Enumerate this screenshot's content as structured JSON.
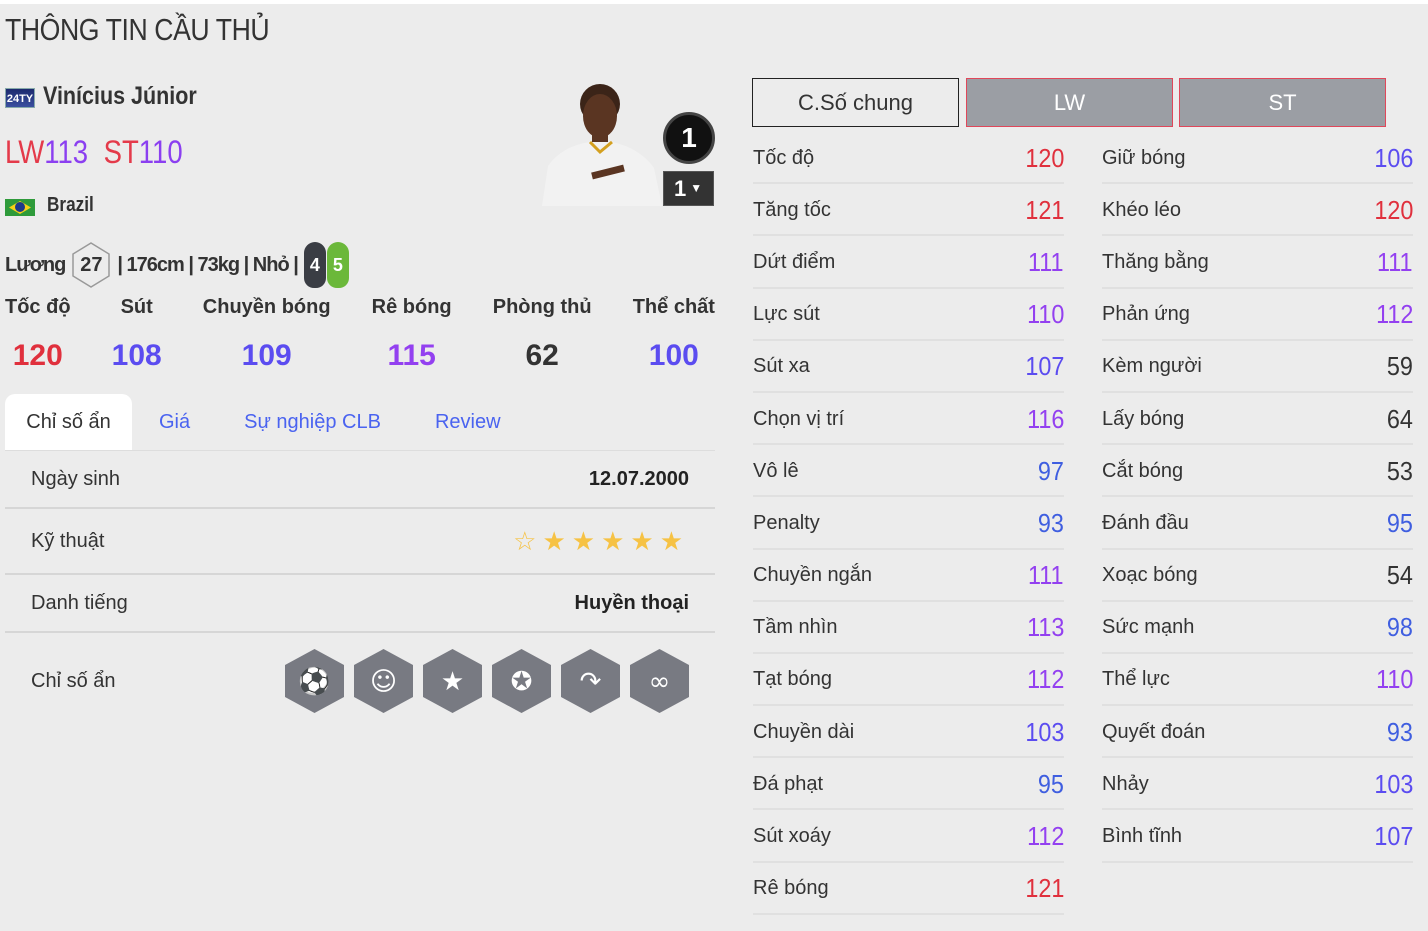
{
  "page_title": "THÔNG TIN CẦU THỦ",
  "player": {
    "season_logo": "24TY",
    "name": "Vinícius Júnior",
    "ratings": [
      {
        "pos": "LW",
        "ovr": "113"
      },
      {
        "pos": "ST",
        "ovr": "110"
      }
    ],
    "nation": "Brazil",
    "salary_label": "Lương",
    "salary": "27",
    "details": "| 176cm | 73kg | Nhỏ |",
    "left_foot": "4",
    "right_foot": "5",
    "upgrade_level": "1",
    "upgrade_select": "1"
  },
  "summary": [
    {
      "label": "Tốc độ",
      "value": 120
    },
    {
      "label": "Sút",
      "value": 108
    },
    {
      "label": "Chuyền bóng",
      "value": 109
    },
    {
      "label": "Rê bóng",
      "value": 115
    },
    {
      "label": "Phòng thủ",
      "value": 62
    },
    {
      "label": "Thể chất",
      "value": 100
    }
  ],
  "tabs": [
    {
      "label": "Chỉ số ẩn",
      "active": true
    },
    {
      "label": "Giá"
    },
    {
      "label": "Sự nghiệp CLB"
    },
    {
      "label": "Review"
    }
  ],
  "info": {
    "birth_label": "Ngày sinh",
    "birth": "12.07.2000",
    "skill_label": "Kỹ thuật",
    "skill_stars": 5,
    "skill_max": 6,
    "rep_label": "Danh tiếng",
    "rep": "Huyền thoại",
    "traits_label": "Chỉ số ẩn",
    "traits": [
      "finesse-shot-icon",
      "flair-icon",
      "speed-dribbler-icon",
      "outside-foot-curl-icon",
      "chip-shot-icon",
      "dribbling-path-icon"
    ]
  },
  "position_buttons": [
    "C.Số chung",
    "LW",
    "ST"
  ],
  "colors": {
    "red": "#e0303d",
    "purple": "#9340f0",
    "violet": "#5b4cf0",
    "blue": "#3f5ee0",
    "dark": "#333333"
  },
  "stats_left": [
    {
      "name": "Tốc độ",
      "value": 120
    },
    {
      "name": "Tăng tốc",
      "value": 121
    },
    {
      "name": "Dứt điểm",
      "value": 111
    },
    {
      "name": "Lực sút",
      "value": 110
    },
    {
      "name": "Sút xa",
      "value": 107
    },
    {
      "name": "Chọn vị trí",
      "value": 116
    },
    {
      "name": "Vô lê",
      "value": 97
    },
    {
      "name": "Penalty",
      "value": 93
    },
    {
      "name": "Chuyền ngắn",
      "value": 111
    },
    {
      "name": "Tầm nhìn",
      "value": 113
    },
    {
      "name": "Tạt bóng",
      "value": 112
    },
    {
      "name": "Chuyền dài",
      "value": 103
    },
    {
      "name": "Đá phạt",
      "value": 95
    },
    {
      "name": "Sút xoáy",
      "value": 112
    },
    {
      "name": "Rê bóng",
      "value": 121
    }
  ],
  "stats_right": [
    {
      "name": "Giữ bóng",
      "value": 106
    },
    {
      "name": "Khéo léo",
      "value": 120
    },
    {
      "name": "Thăng bằng",
      "value": 111
    },
    {
      "name": "Phản ứng",
      "value": 112
    },
    {
      "name": "Kèm người",
      "value": 59
    },
    {
      "name": "Lấy bóng",
      "value": 64
    },
    {
      "name": "Cắt bóng",
      "value": 53
    },
    {
      "name": "Đánh đầu",
      "value": 95
    },
    {
      "name": "Xoạc bóng",
      "value": 54
    },
    {
      "name": "Sức mạnh",
      "value": 98
    },
    {
      "name": "Thể lực",
      "value": 110
    },
    {
      "name": "Quyết đoán",
      "value": 93
    },
    {
      "name": "Nhảy",
      "value": 103
    },
    {
      "name": "Bình tĩnh",
      "value": 107
    }
  ]
}
